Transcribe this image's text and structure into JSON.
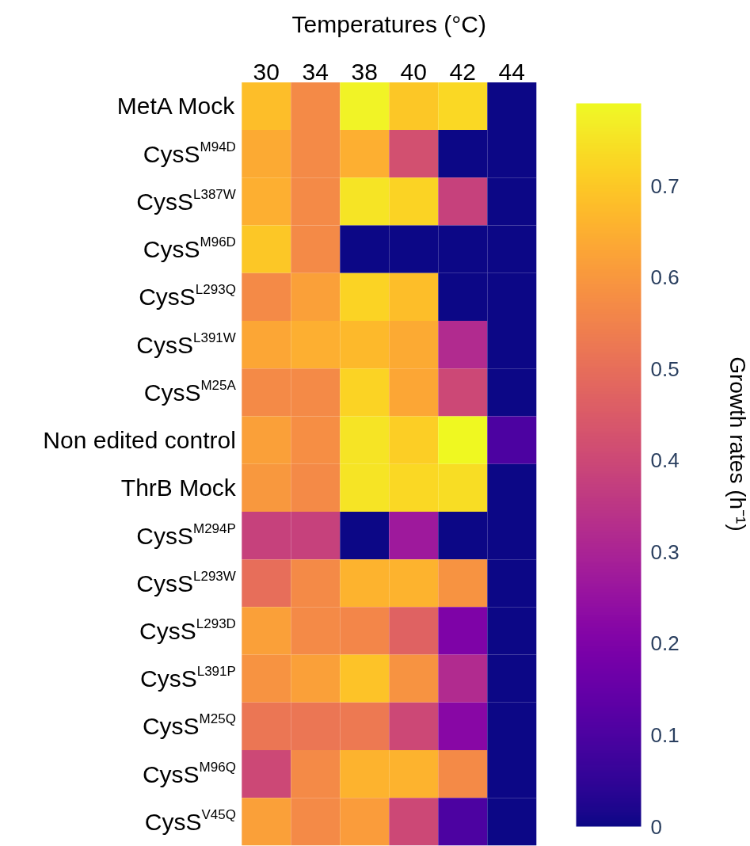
{
  "chart_data": {
    "type": "heatmap",
    "title": "Temperatures (°C)",
    "clabel": "Growth rates (h⁻¹)",
    "categories": [
      "30",
      "34",
      "38",
      "40",
      "42",
      "44"
    ],
    "y_categories": [
      "MetA Mock",
      "CysS$^{M94D}$",
      "CysS$^{L387W}$",
      "CysS$^{M96D}$",
      "CysS$^{L293Q}$",
      "CysS$^{L391W}$",
      "CysS$^{M25A}$",
      "Non edited control",
      "ThrB Mock",
      "CysS$^{M294P}$",
      "CysS$^{L293W}$",
      "CysS$^{L293D}$",
      "CysS$^{L391P}$",
      "CysS$^{M25Q}$",
      "CysS$^{M96Q}$",
      "CysS$^{V45Q}$"
    ],
    "cells": [
      [
        0.68,
        0.57,
        0.78,
        0.7,
        0.73,
        0
      ],
      [
        0.64,
        0.57,
        0.65,
        0.42,
        0,
        0
      ],
      [
        0.65,
        0.57,
        0.75,
        0.72,
        0.38,
        0
      ],
      [
        0.7,
        0.57,
        0,
        0,
        0,
        0
      ],
      [
        0.57,
        0.62,
        0.72,
        0.68,
        0,
        0
      ],
      [
        0.63,
        0.65,
        0.67,
        0.64,
        0.32,
        0
      ],
      [
        0.57,
        0.57,
        0.72,
        0.63,
        0.4,
        0
      ],
      [
        0.62,
        0.58,
        0.75,
        0.71,
        0.79,
        0.1
      ],
      [
        0.6,
        0.57,
        0.75,
        0.73,
        0.74,
        0
      ],
      [
        0.38,
        0.38,
        0,
        0.27,
        0,
        0
      ],
      [
        0.5,
        0.57,
        0.66,
        0.66,
        0.59,
        0
      ],
      [
        0.62,
        0.57,
        0.56,
        0.47,
        0.2,
        0
      ],
      [
        0.59,
        0.62,
        0.69,
        0.59,
        0.32,
        0
      ],
      [
        0.52,
        0.52,
        0.53,
        0.4,
        0.22,
        0
      ],
      [
        0.4,
        0.57,
        0.66,
        0.66,
        0.57,
        0
      ],
      [
        0.62,
        0.57,
        0.61,
        0.4,
        0.1,
        0
      ]
    ],
    "clim": [
      0,
      0.79
    ],
    "cticks": [
      0,
      0.1,
      0.2,
      0.3,
      0.4,
      0.5,
      0.6,
      0.7
    ]
  }
}
